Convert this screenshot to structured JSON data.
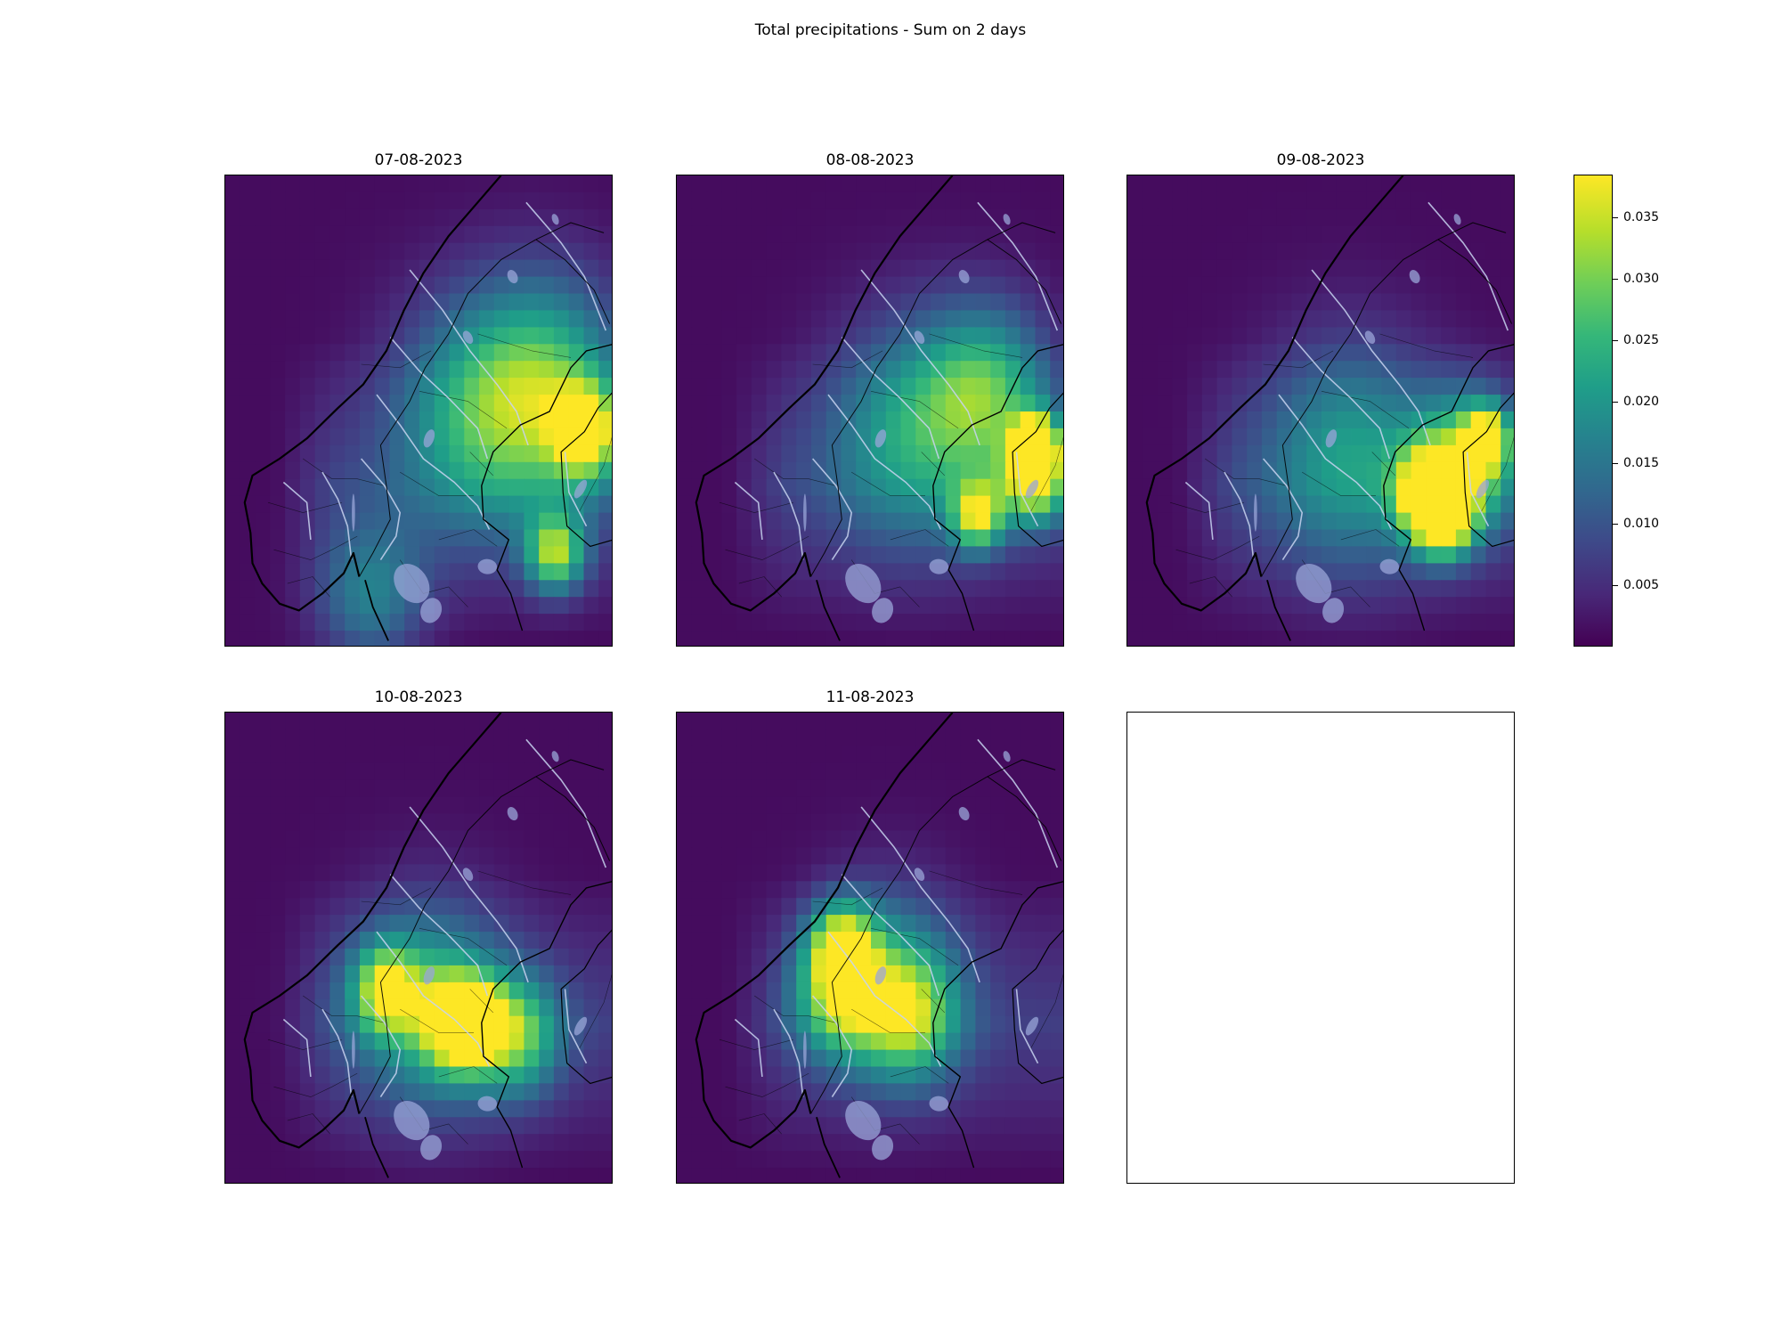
{
  "figure": {
    "title": "Total precipitations - Sum on 2 days"
  },
  "panels": [
    {
      "date": "07-08-2023",
      "hotspots": [
        {
          "lon": 20.7,
          "lat": 64.8,
          "value": 0.022,
          "spread": 2.2
        },
        {
          "lon": 22.6,
          "lat": 63.4,
          "value": 0.03,
          "spread": 0.9
        },
        {
          "lon": 17.0,
          "lat": 64.0,
          "value": 0.018,
          "spread": 2.4
        },
        {
          "lon": 21.0,
          "lat": 59.8,
          "value": 0.028,
          "spread": 0.8
        },
        {
          "lon": 11.5,
          "lat": 58.5,
          "value": 0.014,
          "spread": 1.5
        }
      ]
    },
    {
      "date": "08-08-2023",
      "hotspots": [
        {
          "lon": 22.5,
          "lat": 63.0,
          "value": 0.038,
          "spread": 0.6
        },
        {
          "lon": 22.5,
          "lat": 62.0,
          "value": 0.031,
          "spread": 0.9
        },
        {
          "lon": 20.0,
          "lat": 64.6,
          "value": 0.022,
          "spread": 1.8
        },
        {
          "lon": 19.5,
          "lat": 60.9,
          "value": 0.028,
          "spread": 0.7
        },
        {
          "lon": 16.0,
          "lat": 63.5,
          "value": 0.017,
          "spread": 2.3
        }
      ]
    },
    {
      "date": "09-08-2023",
      "hotspots": [
        {
          "lon": 20.3,
          "lat": 60.9,
          "value": 0.036,
          "spread": 0.8
        },
        {
          "lon": 19.5,
          "lat": 61.6,
          "value": 0.03,
          "spread": 0.9
        },
        {
          "lon": 22.5,
          "lat": 63.2,
          "value": 0.031,
          "spread": 0.6
        },
        {
          "lon": 21.5,
          "lat": 62.5,
          "value": 0.025,
          "spread": 1.4
        },
        {
          "lon": 15.5,
          "lat": 62.8,
          "value": 0.016,
          "spread": 2.4
        }
      ]
    },
    {
      "date": "10-08-2023",
      "hotspots": [
        {
          "lon": 17.0,
          "lat": 61.8,
          "value": 0.037,
          "spread": 0.6
        },
        {
          "lon": 16.0,
          "lat": 61.8,
          "value": 0.032,
          "spread": 1.0
        },
        {
          "lon": 12.3,
          "lat": 62.8,
          "value": 0.026,
          "spread": 0.9
        },
        {
          "lon": 19.0,
          "lat": 61.4,
          "value": 0.022,
          "spread": 1.2
        },
        {
          "lon": 14.5,
          "lat": 62.4,
          "value": 0.017,
          "spread": 2.2
        }
      ]
    },
    {
      "date": "11-08-2023",
      "hotspots": [
        {
          "lon": 12.5,
          "lat": 64.1,
          "value": 0.027,
          "spread": 0.9
        },
        {
          "lon": 12.4,
          "lat": 62.6,
          "value": 0.023,
          "spread": 1.2
        },
        {
          "lon": 16.0,
          "lat": 62.0,
          "value": 0.022,
          "spread": 1.3
        },
        {
          "lon": 14.8,
          "lat": 63.2,
          "value": 0.014,
          "spread": 2.0
        }
      ]
    }
  ],
  "empty_panel": true,
  "colorbar": {
    "colormap": "viridis",
    "range": [
      0.0,
      0.0385
    ],
    "ticks": [
      {
        "value": 0.005,
        "label": "0.005"
      },
      {
        "value": 0.01,
        "label": "0.010"
      },
      {
        "value": 0.015,
        "label": "0.015"
      },
      {
        "value": 0.02,
        "label": "0.020"
      },
      {
        "value": 0.025,
        "label": "0.025"
      },
      {
        "value": 0.03,
        "label": "0.030"
      },
      {
        "value": 0.035,
        "label": "0.035"
      }
    ]
  },
  "map_extent": {
    "lon": [
      4,
      24
    ],
    "lat": [
      57,
      71
    ]
  },
  "colors": {
    "coast": "#000000",
    "borders": "#000000",
    "rivers": "#c8d4f0",
    "lakes": "#9aa6d8"
  }
}
